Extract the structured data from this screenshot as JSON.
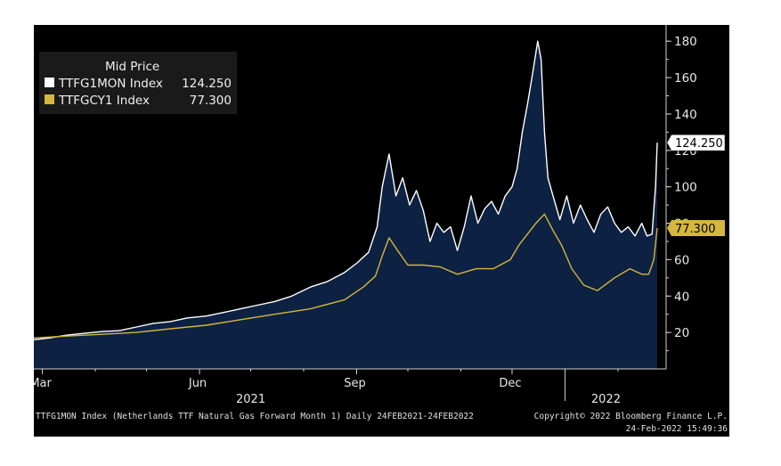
{
  "chart_data": {
    "type": "area",
    "title": "",
    "xlabel": "",
    "ylabel": "",
    "ylim": [
      0,
      185
    ],
    "y_ticks": [
      20,
      40,
      60,
      80,
      100,
      120,
      140,
      160,
      180
    ],
    "y_axis_side": "right",
    "grid": false,
    "legend": {
      "heading": "Mid Price",
      "position": "top-left"
    },
    "x_tick_labels": [
      {
        "label": "Mar",
        "date": "2021-03-01"
      },
      {
        "label": "Jun",
        "date": "2021-06-01"
      },
      {
        "label": "Sep",
        "date": "2021-09-01"
      },
      {
        "label": "Dec",
        "date": "2021-12-01"
      }
    ],
    "year_labels": [
      {
        "label": "2021",
        "date": "2021-07-01"
      },
      {
        "label": "2022",
        "date": "2022-01-25"
      }
    ],
    "year_divider": "2022-01-01",
    "x_range": [
      "2021-02-24",
      "2022-02-24"
    ],
    "series": [
      {
        "name": "TTFG1MON Index",
        "last_value": "124.250",
        "color": "#ffffff",
        "fill": "#0d2142",
        "x": [
          "2021-02-24",
          "2021-03-05",
          "2021-03-15",
          "2021-03-25",
          "2021-04-05",
          "2021-04-15",
          "2021-04-25",
          "2021-05-05",
          "2021-05-15",
          "2021-05-25",
          "2021-06-05",
          "2021-06-15",
          "2021-06-25",
          "2021-07-05",
          "2021-07-15",
          "2021-07-25",
          "2021-08-05",
          "2021-08-15",
          "2021-08-25",
          "2021-09-01",
          "2021-09-08",
          "2021-09-13",
          "2021-09-16",
          "2021-09-20",
          "2021-09-24",
          "2021-09-28",
          "2021-10-02",
          "2021-10-06",
          "2021-10-10",
          "2021-10-14",
          "2021-10-18",
          "2021-10-22",
          "2021-10-26",
          "2021-10-30",
          "2021-11-03",
          "2021-11-07",
          "2021-11-11",
          "2021-11-15",
          "2021-11-19",
          "2021-11-23",
          "2021-11-27",
          "2021-12-01",
          "2021-12-04",
          "2021-12-07",
          "2021-12-10",
          "2021-12-13",
          "2021-12-16",
          "2021-12-18",
          "2021-12-20",
          "2021-12-22",
          "2021-12-25",
          "2021-12-29",
          "2022-01-02",
          "2022-01-06",
          "2022-01-10",
          "2022-01-14",
          "2022-01-18",
          "2022-01-22",
          "2022-01-26",
          "2022-01-30",
          "2022-02-03",
          "2022-02-07",
          "2022-02-11",
          "2022-02-15",
          "2022-02-18",
          "2022-02-21",
          "2022-02-23",
          "2022-02-24"
        ],
        "values": [
          16,
          17,
          18.5,
          19.5,
          20.5,
          21,
          23,
          25,
          26,
          28,
          29,
          31,
          33,
          35,
          37,
          40,
          45,
          48,
          53,
          58,
          64,
          78,
          100,
          118,
          95,
          105,
          90,
          98,
          87,
          70,
          80,
          75,
          78,
          65,
          78,
          95,
          80,
          88,
          92,
          85,
          95,
          100,
          110,
          130,
          145,
          162,
          180,
          170,
          130,
          105,
          95,
          82,
          95,
          80,
          90,
          82,
          75,
          85,
          89,
          80,
          75,
          78,
          73,
          80,
          73,
          74,
          100,
          124.25
        ]
      },
      {
        "name": "TTFGCY1 Index",
        "last_value": "77.300",
        "color": "#d4b73c",
        "x": [
          "2021-02-24",
          "2021-03-15",
          "2021-04-05",
          "2021-04-25",
          "2021-05-15",
          "2021-06-05",
          "2021-06-25",
          "2021-07-15",
          "2021-08-05",
          "2021-08-25",
          "2021-09-05",
          "2021-09-12",
          "2021-09-16",
          "2021-09-20",
          "2021-09-25",
          "2021-10-01",
          "2021-10-10",
          "2021-10-20",
          "2021-10-30",
          "2021-11-10",
          "2021-11-20",
          "2021-11-30",
          "2021-12-05",
          "2021-12-10",
          "2021-12-15",
          "2021-12-20",
          "2021-12-25",
          "2021-12-30",
          "2022-01-05",
          "2022-01-12",
          "2022-01-20",
          "2022-01-30",
          "2022-02-08",
          "2022-02-15",
          "2022-02-19",
          "2022-02-22",
          "2022-02-24"
        ],
        "values": [
          17,
          18,
          19,
          20,
          22,
          24,
          27,
          30,
          33,
          38,
          45,
          51,
          62,
          72,
          65,
          57,
          57,
          56,
          52,
          55,
          55,
          60,
          68,
          74,
          80,
          85,
          76,
          68,
          55,
          46,
          43,
          50,
          55,
          52,
          52,
          60,
          77.3
        ]
      }
    ]
  },
  "footer": {
    "left": "TTFG1MON Index (Netherlands TTF Natural Gas Forward Month 1)  Daily 24FEB2021-24FEB2022",
    "right_line1": "Copyright© 2022 Bloomberg Finance L.P.",
    "right_line2": "24-Feb-2022 15:49:36"
  }
}
